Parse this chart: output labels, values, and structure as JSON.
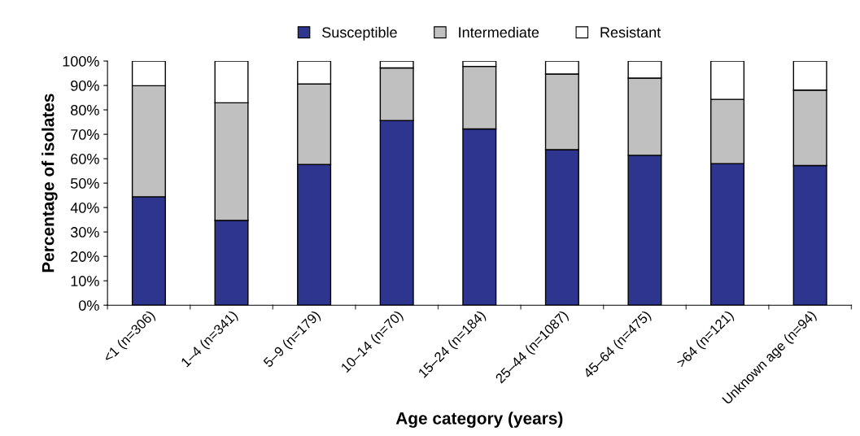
{
  "chart_data": {
    "type": "bar",
    "stacked": true,
    "xlabel": "Age category (years)",
    "ylabel": "Percentage of isolates",
    "categories": [
      "<1 (n=306)",
      "1–4 (n=341)",
      "5–9 (n=179)",
      "10–14 (n=70)",
      "15–24 (n=184)",
      "25–44 (n=1087)",
      "45–64 (n=475)",
      ">64 (n=121)",
      "Unknown age (n=94)"
    ],
    "series": [
      {
        "name": "Susceptible",
        "color": "#2e358e",
        "values": [
          44.4,
          34.7,
          57.6,
          75.6,
          72.2,
          63.7,
          61.4,
          58.0,
          57.2
        ]
      },
      {
        "name": "Intermediate",
        "color": "#c0c0c0",
        "values": [
          45.5,
          48.2,
          33.0,
          21.6,
          25.6,
          31.0,
          31.6,
          26.3,
          30.9
        ]
      },
      {
        "name": "Resistant",
        "color": "#ffffff",
        "values": [
          10.1,
          17.1,
          9.4,
          2.8,
          2.2,
          5.3,
          7.0,
          15.7,
          11.9
        ]
      }
    ],
    "ylim": [
      0,
      100
    ],
    "yticks": [
      {
        "value": 0,
        "label": "0%"
      },
      {
        "value": 10,
        "label": "10%"
      },
      {
        "value": 20,
        "label": "20%"
      },
      {
        "value": 30,
        "label": "30%"
      },
      {
        "value": 40,
        "label": "40%"
      },
      {
        "value": 50,
        "label": "50%"
      },
      {
        "value": 60,
        "label": "60%"
      },
      {
        "value": 70,
        "label": "70%"
      },
      {
        "value": 80,
        "label": "80%"
      },
      {
        "value": 90,
        "label": "90%"
      },
      {
        "value": 100,
        "label": "100%"
      }
    ],
    "grid": false,
    "legend": "top"
  }
}
